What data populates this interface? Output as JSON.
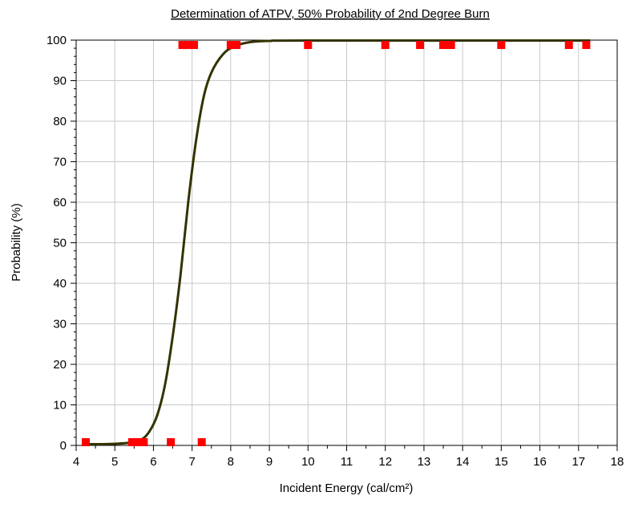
{
  "chart_data": {
    "type": "scatter",
    "title": "Determination of ATPV, 50% Probability of 2nd Degree Burn",
    "xlabel": "Incident Energy (cal/cm²)",
    "ylabel": "Probability (%)",
    "xlim": [
      4,
      18
    ],
    "ylim": [
      0,
      100
    ],
    "x_ticks": [
      4,
      5,
      6,
      7,
      8,
      9,
      10,
      11,
      12,
      13,
      14,
      15,
      16,
      17,
      18
    ],
    "y_ticks": [
      0,
      10,
      20,
      30,
      40,
      50,
      60,
      70,
      80,
      90,
      100
    ],
    "grid": true,
    "legend": "none",
    "series": [
      {
        "kind": "points",
        "color": "#ff0000",
        "marker": "square",
        "points": [
          [
            4.25,
            0.8
          ],
          [
            5.45,
            0.8
          ],
          [
            5.6,
            0.8
          ],
          [
            5.75,
            0.8
          ],
          [
            6.45,
            0.8
          ],
          [
            7.25,
            0.8
          ],
          [
            6.75,
            98.8
          ],
          [
            6.9,
            98.8
          ],
          [
            7.05,
            98.8
          ],
          [
            8.0,
            98.8
          ],
          [
            8.15,
            98.8
          ],
          [
            10.0,
            98.8
          ],
          [
            12.0,
            98.8
          ],
          [
            12.9,
            98.8
          ],
          [
            13.5,
            98.8
          ],
          [
            13.7,
            98.8
          ],
          [
            15.0,
            98.8
          ],
          [
            16.75,
            98.8
          ],
          [
            17.2,
            98.8
          ]
        ]
      },
      {
        "kind": "curve",
        "color": "#333300",
        "points": [
          [
            4.3,
            0.3
          ],
          [
            4.6,
            0.3
          ],
          [
            5.0,
            0.4
          ],
          [
            5.4,
            0.7
          ],
          [
            5.7,
            1.5
          ],
          [
            5.9,
            3.5
          ],
          [
            6.1,
            7.5
          ],
          [
            6.3,
            15
          ],
          [
            6.5,
            27
          ],
          [
            6.7,
            42
          ],
          [
            6.9,
            60
          ],
          [
            7.1,
            75
          ],
          [
            7.3,
            86
          ],
          [
            7.5,
            92
          ],
          [
            7.8,
            96.5
          ],
          [
            8.1,
            98.5
          ],
          [
            8.5,
            99.5
          ],
          [
            9.0,
            99.8
          ],
          [
            10.0,
            99.9
          ],
          [
            17.3,
            99.9
          ]
        ]
      }
    ]
  }
}
